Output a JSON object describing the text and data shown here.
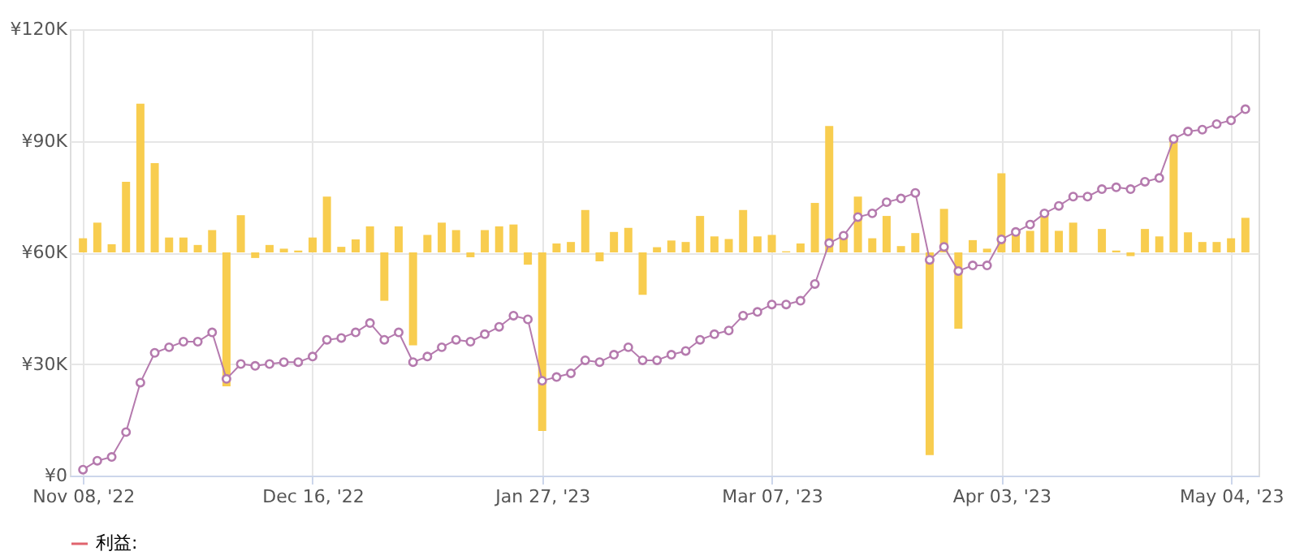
{
  "chart_data": {
    "type": "line",
    "categories": [
      "Nov 08, '22",
      null,
      null,
      null,
      null,
      null,
      null,
      null,
      null,
      null,
      null,
      null,
      null,
      null,
      null,
      null,
      "Dec 16, '22",
      null,
      null,
      null,
      null,
      null,
      null,
      null,
      null,
      null,
      null,
      null,
      null,
      null,
      null,
      null,
      "Jan 27, '23",
      null,
      null,
      null,
      null,
      null,
      null,
      null,
      null,
      null,
      null,
      null,
      null,
      null,
      null,
      null,
      "Mar 07, '23",
      null,
      null,
      null,
      null,
      null,
      null,
      null,
      null,
      null,
      null,
      null,
      null,
      null,
      null,
      null,
      "Apr 03, '23",
      null,
      null,
      null,
      null,
      null,
      null,
      null,
      null,
      null,
      null,
      null,
      null,
      null,
      null,
      null,
      "May 04, '23",
      null
    ],
    "series": [
      {
        "type": "bar",
        "color": "#f8cd4f",
        "base": [
          60000,
          60000,
          60000,
          60000,
          60000,
          60000,
          60000,
          60000,
          60000,
          60000,
          60000,
          60000,
          60000,
          60000,
          60000,
          60000,
          60000,
          60000,
          60000,
          60000,
          60000,
          60000,
          60000,
          60000,
          60000,
          60000,
          60000,
          60000,
          60000,
          60000,
          60000,
          60000,
          60000,
          60000,
          60000,
          60000,
          60000,
          60000,
          60000,
          60000,
          60000,
          60000,
          60000,
          60000,
          60000,
          60000,
          60000,
          60000,
          60000,
          60000,
          60000,
          60000,
          60000,
          60000,
          60000,
          60000,
          60000,
          60000,
          60000,
          60000,
          60000,
          60000,
          60000,
          60000,
          60000,
          60000,
          60000,
          60000,
          60000,
          60000,
          null,
          60000,
          60000,
          60000,
          60000,
          60000,
          60000,
          60000,
          60000,
          60000,
          60000,
          60000
        ],
        "values": [
          3800,
          8000,
          2200,
          19000,
          40000,
          24000,
          4000,
          4000,
          2000,
          6000,
          -36000,
          10000,
          -1500,
          2000,
          1000,
          500,
          4000,
          15000,
          1500,
          3500,
          7000,
          -13000,
          7000,
          -25000,
          4700,
          8000,
          6000,
          -1300,
          6000,
          7000,
          7500,
          -3300,
          -48000,
          2400,
          2800,
          11400,
          -2400,
          5500,
          6600,
          -11400,
          1400,
          3200,
          2800,
          9800,
          4300,
          3600,
          11400,
          4300,
          4700,
          300,
          2400,
          13300,
          34000,
          3800,
          15000,
          3800,
          9800,
          1700,
          5200,
          -54500,
          11700,
          -20500,
          3300,
          1000,
          21300,
          5000,
          5800,
          9800,
          5800,
          8000,
          null,
          6300,
          500,
          -1000,
          6300,
          4300,
          30300,
          5400,
          2800,
          2800,
          3800,
          9300
        ]
      },
      {
        "name": "利益:",
        "color": "#e0646e",
        "values": [
          null,
          null,
          null,
          null,
          null,
          null,
          null,
          null,
          null,
          null,
          null,
          null,
          null,
          null,
          null,
          null,
          null,
          null,
          null,
          null,
          null,
          null,
          null,
          null,
          null,
          null,
          null,
          null,
          null,
          null,
          null,
          null,
          null,
          null,
          null,
          null,
          null,
          null,
          null,
          null,
          null,
          null,
          null,
          null,
          null,
          null,
          null,
          null,
          null,
          null,
          null,
          null,
          null,
          null,
          null,
          null,
          null,
          null,
          null,
          null,
          null,
          null,
          null,
          null,
          null,
          null,
          null,
          null,
          null,
          null,
          null,
          null,
          null,
          null,
          null,
          null,
          null,
          null,
          null,
          null,
          null,
          null
        ]
      },
      {
        "color": "#b57aae",
        "values": [
          1600,
          4000,
          5000,
          11700,
          25000,
          33000,
          34500,
          36000,
          36000,
          38500,
          26000,
          30000,
          29500,
          30000,
          30500,
          30500,
          32000,
          36500,
          37000,
          38500,
          41000,
          36500,
          38500,
          30500,
          32000,
          34500,
          36500,
          36000,
          38000,
          40000,
          43000,
          42000,
          25500,
          26500,
          27500,
          31000,
          30500,
          32500,
          34500,
          31000,
          31000,
          32500,
          33500,
          36500,
          38000,
          39000,
          43000,
          44000,
          46000,
          46000,
          47000,
          51500,
          62500,
          64500,
          69500,
          70500,
          73500,
          74500,
          76000,
          58000,
          61500,
          55000,
          56500,
          56500,
          63500,
          65500,
          67500,
          70500,
          72500,
          75000,
          75000,
          77000,
          77500,
          77000,
          79000,
          80000,
          90500,
          92500,
          93000,
          94500,
          95500,
          98500
        ]
      }
    ],
    "ylim": [
      0,
      120000
    ],
    "yticks": [
      {
        "value": 0,
        "label": "¥0"
      },
      {
        "value": 30000,
        "label": "¥30K"
      },
      {
        "value": 60000,
        "label": "¥60K"
      },
      {
        "value": 90000,
        "label": "¥90K"
      },
      {
        "value": 120000,
        "label": "¥120K"
      }
    ],
    "grid": true,
    "legend": "bottom",
    "marker": "circle",
    "line_style": "solid"
  }
}
